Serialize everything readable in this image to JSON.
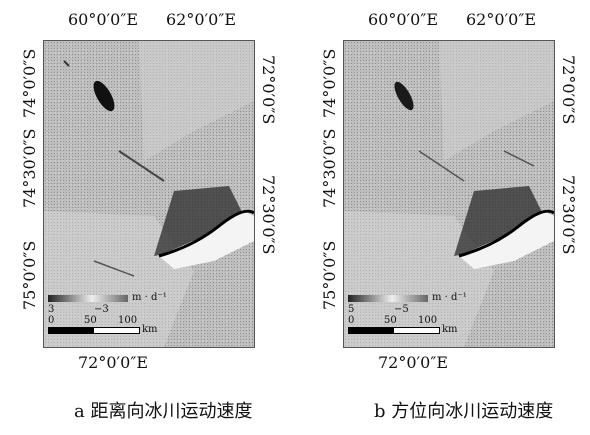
{
  "panels": [
    {
      "id": "a",
      "top_labels": [
        "60°0′0″E",
        "62°0′0″E"
      ],
      "bottom_label": "72°0′0″E",
      "left_labels": [
        "74°0′0″S",
        "74°30′0″S",
        "75°0′0″S"
      ],
      "right_labels": [
        "72°0′0″S",
        "72°30′0″S"
      ],
      "legend": {
        "unit": "m · d⁻¹",
        "low": "3",
        "high": "−3",
        "scale_ticks": [
          "0",
          "50",
          "100"
        ],
        "scale_unit": "km"
      },
      "caption": "a 距离向冰川运动速度"
    },
    {
      "id": "b",
      "top_labels": [
        "60°0′0″E",
        "62°0′0″E"
      ],
      "bottom_label": "72°0′0″E",
      "left_labels": [
        "74°0′0″S",
        "74°30′0″S",
        "75°0′0″S"
      ],
      "right_labels": [
        "72°0′0″S",
        "72°30′0″S"
      ],
      "legend": {
        "unit": "m · d⁻¹",
        "low": "5",
        "high": "−5",
        "scale_ticks": [
          "0",
          "50",
          "100"
        ],
        "scale_unit": "km"
      },
      "caption": "b 方位向冰川运动速度"
    }
  ]
}
